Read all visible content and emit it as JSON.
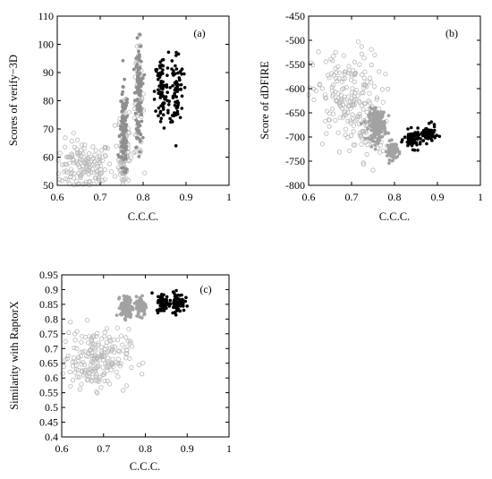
{
  "chart_data": [
    {
      "panel_label": "(a)",
      "type": "scatter",
      "xlabel": "C.C.C.",
      "ylabel": "Scores of verify−3D",
      "xlim": [
        0.6,
        1.0
      ],
      "ylim": [
        50,
        110
      ],
      "xticks": [
        "0.6",
        "0.7",
        "0.8",
        "0.9",
        "1"
      ],
      "yticks": [
        "50",
        "60",
        "70",
        "80",
        "90",
        "100",
        "110"
      ],
      "series": [
        {
          "style": "light-open",
          "color": "#b8b8b8",
          "clusters": [
            {
              "x": 0.66,
              "y": 56,
              "sx": 0.035,
              "sy": 5,
              "n": 170
            },
            {
              "x": 0.755,
              "y": 62,
              "sx": 0.006,
              "sy": 8,
              "n": 120
            },
            {
              "x": 0.79,
              "y": 80,
              "sx": 0.006,
              "sy": 10,
              "n": 60
            }
          ]
        },
        {
          "style": "mid-filled",
          "color": "#8f8f8f",
          "clusters": [
            {
              "x": 0.755,
              "y": 68,
              "sx": 0.005,
              "sy": 8,
              "n": 100
            },
            {
              "x": 0.79,
              "y": 82,
              "sx": 0.004,
              "sy": 9,
              "n": 120
            }
          ]
        },
        {
          "style": "dark-filled",
          "color": "#000000",
          "clusters": [
            {
              "x": 0.843,
              "y": 83,
              "sx": 0.008,
              "sy": 7,
              "n": 75
            },
            {
              "x": 0.878,
              "y": 84,
              "sx": 0.008,
              "sy": 7,
              "n": 75
            }
          ]
        }
      ]
    },
    {
      "panel_label": "(b)",
      "type": "scatter",
      "xlabel": "C.C.C.",
      "ylabel": "Score of dDFIRE",
      "xlim": [
        0.6,
        1.0
      ],
      "ylim": [
        -800,
        -450
      ],
      "xticks": [
        "0.6",
        "0.7",
        "0.8",
        "0.9",
        "1"
      ],
      "yticks": [
        "-800",
        "-750",
        "-700",
        "-650",
        "-600",
        "-550",
        "-500",
        "-450"
      ],
      "series": [
        {
          "style": "light-open",
          "color": "#b8b8b8",
          "clusters": [
            {
              "x": 0.69,
              "y": -620,
              "sx": 0.04,
              "sy": 50,
              "n": 190
            },
            {
              "x": 0.74,
              "y": -690,
              "sx": 0.02,
              "sy": 30,
              "n": 40
            }
          ]
        },
        {
          "style": "mid-filled",
          "color": "#a2a2a2",
          "clusters": [
            {
              "x": 0.76,
              "y": -675,
              "sx": 0.01,
              "sy": 16,
              "n": 170
            },
            {
              "x": 0.795,
              "y": -728,
              "sx": 0.006,
              "sy": 9,
              "n": 90
            }
          ]
        },
        {
          "style": "dark-filled",
          "color": "#000000",
          "clusters": [
            {
              "x": 0.843,
              "y": -705,
              "sx": 0.01,
              "sy": 9,
              "n": 70
            },
            {
              "x": 0.878,
              "y": -695,
              "sx": 0.009,
              "sy": 9,
              "n": 70
            }
          ]
        }
      ]
    },
    {
      "panel_label": "(c)",
      "type": "scatter",
      "xlabel": "C.C.C.",
      "ylabel": "Similarity with RaptorX",
      "xlim": [
        0.6,
        1.0
      ],
      "ylim": [
        0.4,
        0.95
      ],
      "xticks": [
        "0.6",
        "0.7",
        "0.8",
        "0.9",
        "1"
      ],
      "yticks": [
        "0.4",
        "0.45",
        "0.5",
        "0.55",
        "0.6",
        "0.65",
        "0.7",
        "0.75",
        "0.8",
        "0.85",
        "0.9",
        "0.95"
      ],
      "series": [
        {
          "style": "light-open",
          "color": "#b8b8b8",
          "clusters": [
            {
              "x": 0.68,
              "y": 0.665,
              "sx": 0.04,
              "sy": 0.05,
              "n": 210
            }
          ]
        },
        {
          "style": "mid-filled",
          "color": "#a2a2a2",
          "clusters": [
            {
              "x": 0.755,
              "y": 0.84,
              "sx": 0.007,
              "sy": 0.018,
              "n": 110
            },
            {
              "x": 0.79,
              "y": 0.845,
              "sx": 0.006,
              "sy": 0.016,
              "n": 100
            }
          ]
        },
        {
          "style": "dark-filled",
          "color": "#000000",
          "clusters": [
            {
              "x": 0.843,
              "y": 0.855,
              "sx": 0.008,
              "sy": 0.016,
              "n": 70
            },
            {
              "x": 0.878,
              "y": 0.857,
              "sx": 0.008,
              "sy": 0.016,
              "n": 70
            }
          ]
        }
      ]
    }
  ]
}
